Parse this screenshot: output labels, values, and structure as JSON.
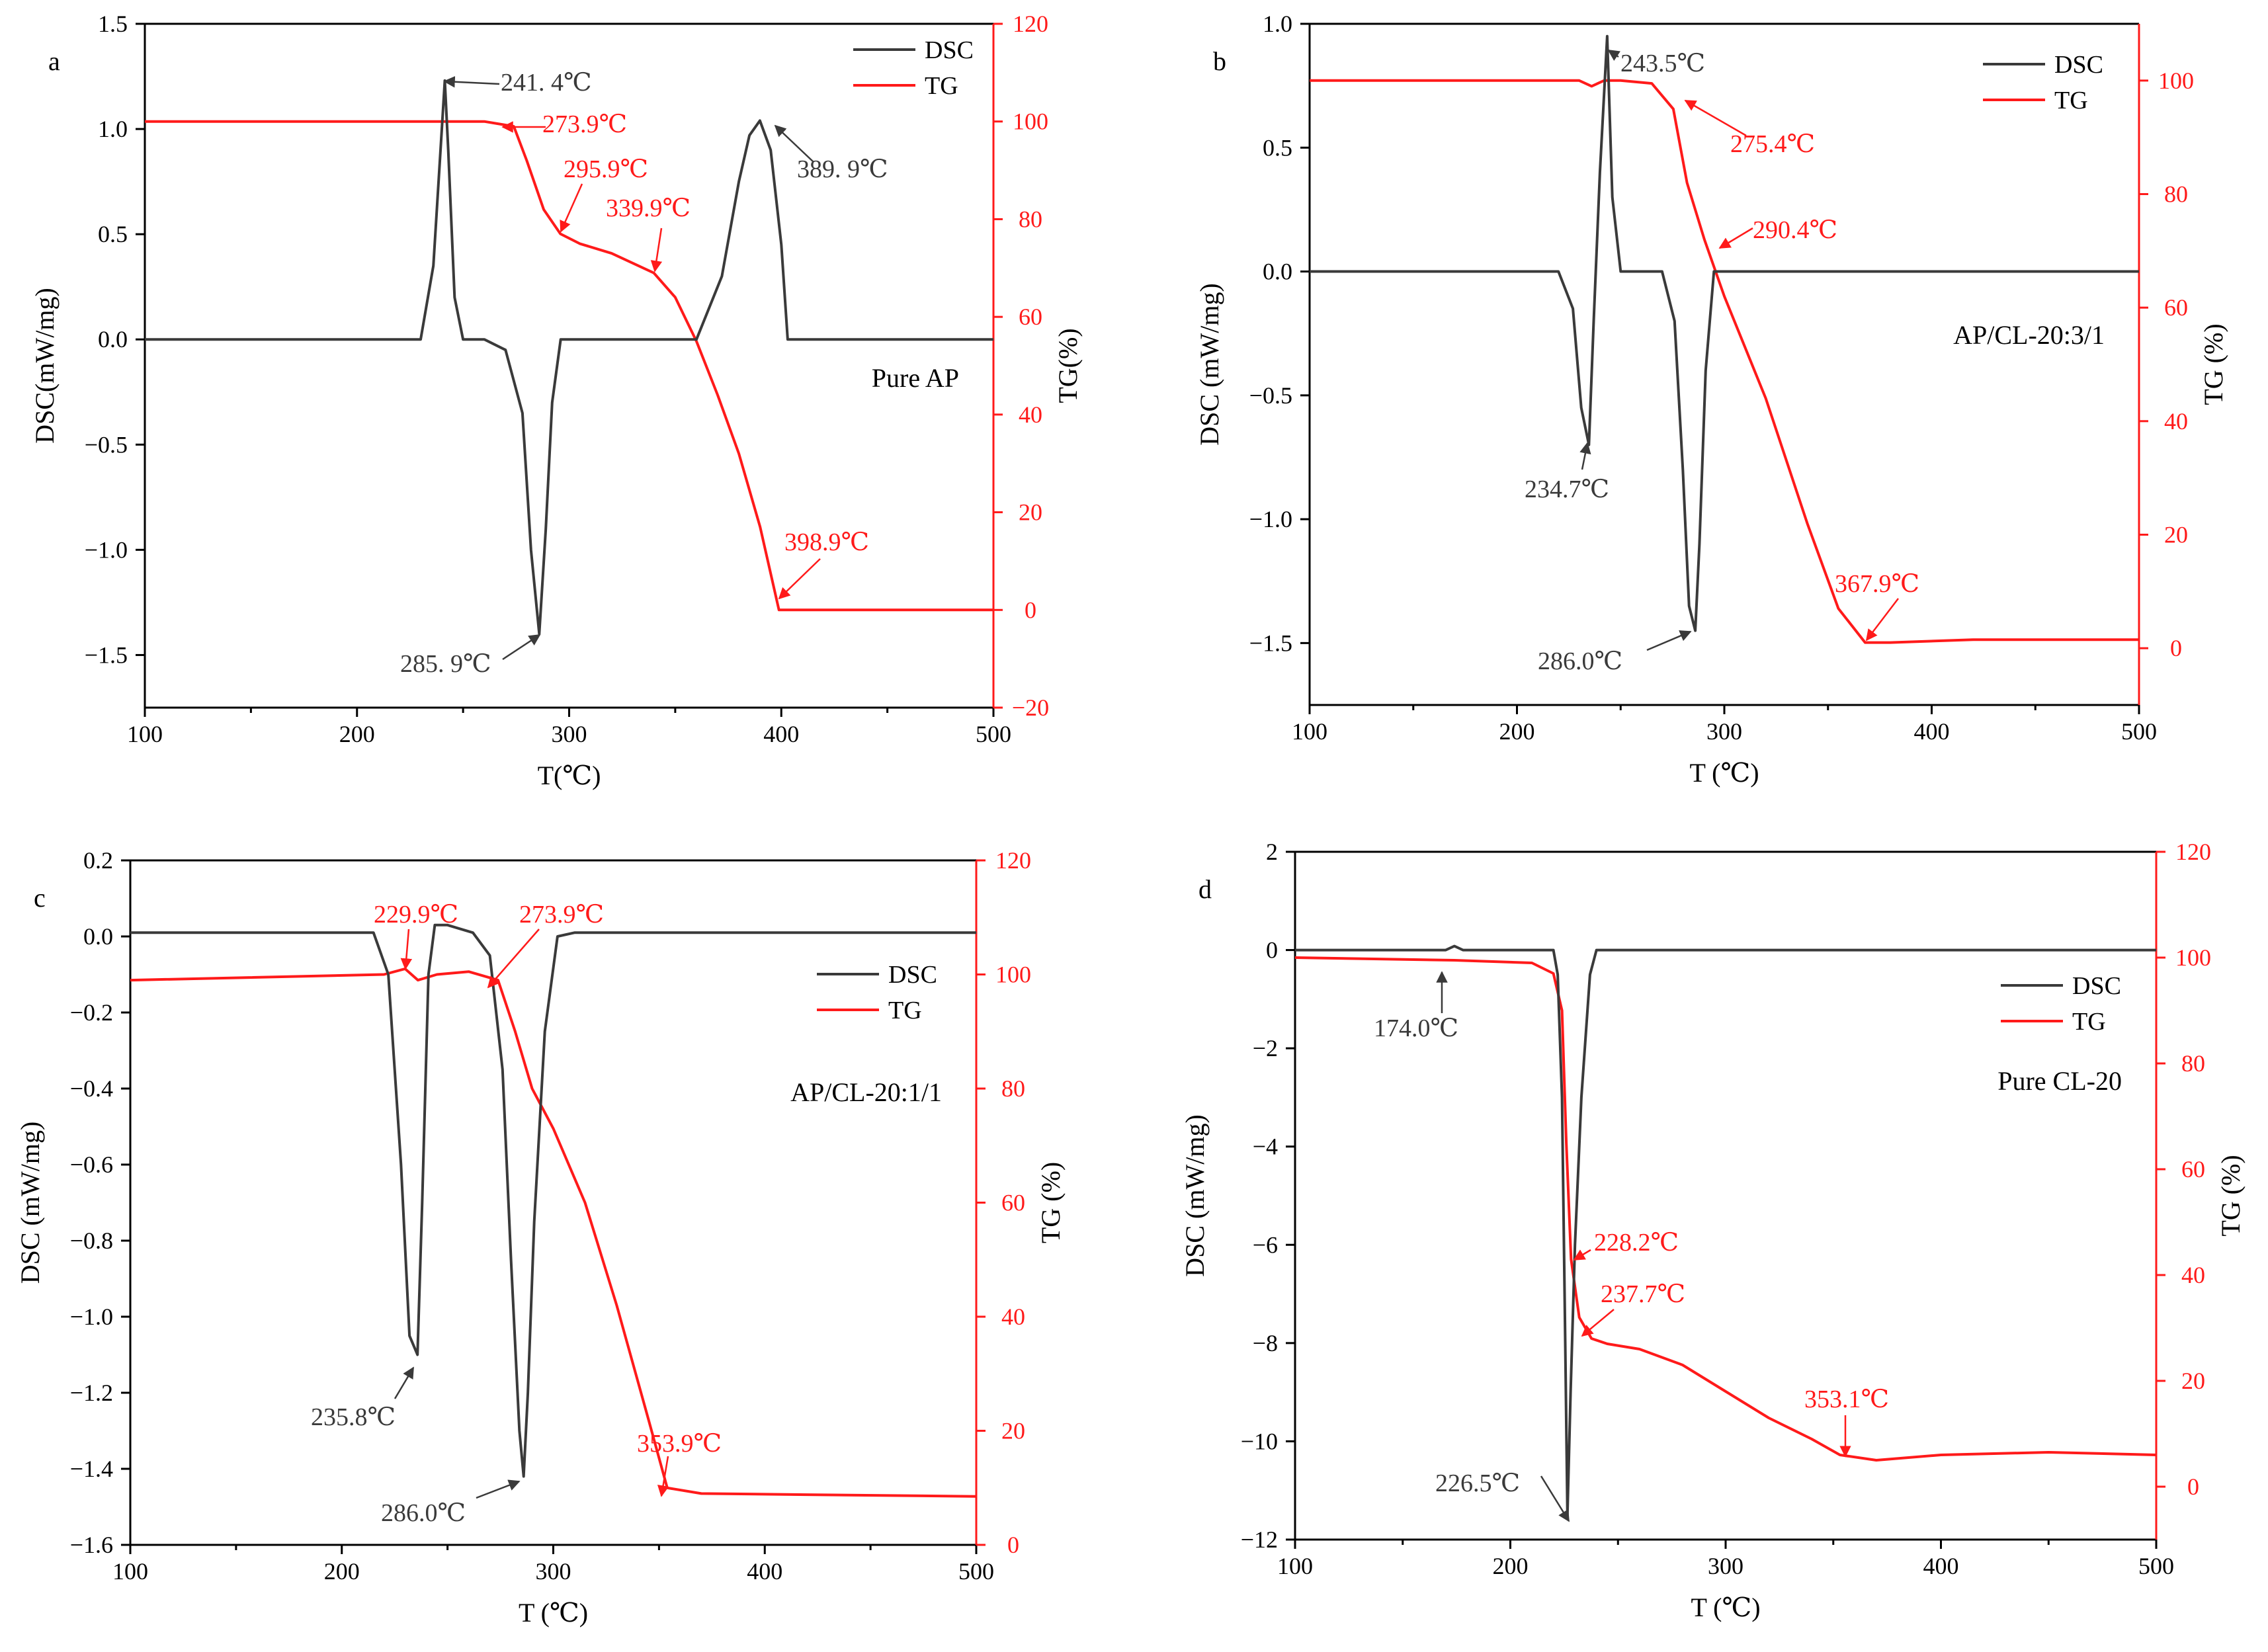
{
  "colors": {
    "dsc": "#3a3a3a",
    "tg": "#ff1a1a",
    "axis": "#000000"
  },
  "chart_data": [
    {
      "type": "line",
      "panel_label": "a",
      "sample_label": "Pure AP",
      "xlabel": "T(℃)",
      "ylabel_left": "DSC(mW/mg)",
      "ylabel_right": "TG(%)",
      "xlim": [
        100,
        500
      ],
      "ylim_left": [
        -1.75,
        1.5
      ],
      "ylim_right": [
        -20,
        120
      ],
      "xticks": [
        100,
        200,
        300,
        400,
        500
      ],
      "xtick_labels": [
        "100",
        "200",
        "300",
        "400",
        "500"
      ],
      "yticks_left": [
        -1.5,
        -1.0,
        -0.5,
        0.0,
        0.5,
        1.0,
        1.5
      ],
      "ytick_labels_left": [
        "−1.5",
        "−1.0",
        "−0.5",
        "0.0",
        "0.5",
        "1.0",
        "1.5"
      ],
      "yticks_right": [
        -20,
        0,
        20,
        40,
        60,
        80,
        100,
        120
      ],
      "ytick_labels_right": [
        "−20",
        "0",
        "20",
        "40",
        "60",
        "80",
        "100",
        "120"
      ],
      "legend": {
        "position": "top-right",
        "entries": [
          "DSC",
          "TG"
        ]
      },
      "series": [
        {
          "name": "DSC",
          "axis": "left",
          "x": [
            100,
            230,
            236,
            240,
            241.4,
            243,
            246,
            250,
            260,
            270,
            278,
            282,
            285.9,
            289,
            292,
            296,
            300,
            330,
            360,
            372,
            380,
            385,
            389.9,
            395,
            400,
            403,
            420,
            500
          ],
          "y": [
            0,
            0,
            0.35,
            1.0,
            1.23,
            0.9,
            0.2,
            0,
            0,
            -0.05,
            -0.35,
            -1.0,
            -1.4,
            -0.9,
            -0.3,
            0,
            0,
            0,
            0,
            0.3,
            0.75,
            0.97,
            1.04,
            0.9,
            0.45,
            0,
            0,
            0
          ]
        },
        {
          "name": "TG",
          "axis": "right",
          "x": [
            100,
            260,
            273.9,
            280,
            288,
            295.9,
            305,
            320,
            339.9,
            350,
            360,
            370,
            380,
            390,
            398.9,
            410,
            450,
            500
          ],
          "y": [
            100,
            100,
            99,
            92,
            82,
            77,
            75,
            73,
            69,
            64,
            55,
            44,
            32,
            17,
            0,
            0,
            0,
            0
          ]
        }
      ],
      "annotations": [
        {
          "text": "241. 4℃",
          "series": "DSC"
        },
        {
          "text": "389. 9℃",
          "series": "DSC"
        },
        {
          "text": "285. 9℃",
          "series": "DSC"
        },
        {
          "text": "273.9℃",
          "series": "TG"
        },
        {
          "text": "295.9℃",
          "series": "TG"
        },
        {
          "text": "339.9℃",
          "series": "TG"
        },
        {
          "text": "398.9℃",
          "series": "TG"
        }
      ]
    },
    {
      "type": "line",
      "panel_label": "b",
      "sample_label": "AP/CL-20:3/1",
      "xlabel": "T (℃)",
      "ylabel_left": "DSC (mW/mg)",
      "ylabel_right": "TG (%)",
      "xlim": [
        100,
        500
      ],
      "ylim_left": [
        -1.75,
        1.0
      ],
      "ylim_right": [
        -10,
        110
      ],
      "xticks": [
        100,
        200,
        300,
        400,
        500
      ],
      "xtick_labels": [
        "100",
        "200",
        "300",
        "400",
        "500"
      ],
      "yticks_left": [
        -1.5,
        -1.0,
        -0.5,
        0.0,
        0.5,
        1.0
      ],
      "ytick_labels_left": [
        "−1.5",
        "−1.0",
        "−0.5",
        "0.0",
        "0.5",
        "1.0"
      ],
      "yticks_right": [
        0,
        20,
        40,
        60,
        80,
        100
      ],
      "ytick_labels_right": [
        "0",
        "20",
        "40",
        "60",
        "80",
        "100"
      ],
      "legend": {
        "position": "top-right",
        "entries": [
          "DSC",
          "TG"
        ]
      },
      "series": [
        {
          "name": "DSC",
          "axis": "left",
          "x": [
            100,
            220,
            227,
            231,
            234.7,
            237,
            240,
            243.5,
            246,
            250,
            260,
            270,
            276,
            280,
            283,
            286,
            288,
            291,
            295,
            300,
            340,
            380,
            420,
            460,
            500
          ],
          "y": [
            0,
            0,
            -0.15,
            -0.55,
            -0.7,
            -0.2,
            0.4,
            0.95,
            0.3,
            0,
            0,
            0,
            -0.2,
            -0.8,
            -1.35,
            -1.45,
            -1.1,
            -0.4,
            0,
            0,
            0,
            0,
            0,
            0,
            0
          ]
        },
        {
          "name": "TG",
          "axis": "right",
          "x": [
            100,
            230,
            236,
            242,
            250,
            265,
            275.4,
            282,
            290.4,
            300,
            320,
            340,
            355,
            367.9,
            380,
            420,
            500
          ],
          "y": [
            100,
            100,
            99,
            100,
            100,
            99.5,
            95,
            82,
            72,
            62,
            44,
            22,
            7,
            1,
            1,
            1.5,
            1.5
          ]
        }
      ],
      "annotations": [
        {
          "text": "243.5℃",
          "series": "DSC"
        },
        {
          "text": "234.7℃",
          "series": "DSC"
        },
        {
          "text": "286.0℃",
          "series": "DSC"
        },
        {
          "text": "275.4℃",
          "series": "TG"
        },
        {
          "text": "290.4℃",
          "series": "TG"
        },
        {
          "text": "367.9℃",
          "series": "TG"
        }
      ]
    },
    {
      "type": "line",
      "panel_label": "c",
      "sample_label": "AP/CL-20:1/1",
      "xlabel": "T (℃)",
      "ylabel_left": "DSC (mW/mg)",
      "ylabel_right": "TG (%)",
      "xlim": [
        100,
        500
      ],
      "ylim_left": [
        -1.6,
        0.2
      ],
      "ylim_right": [
        0,
        120
      ],
      "xticks": [
        100,
        200,
        300,
        400,
        500
      ],
      "xtick_labels": [
        "100",
        "200",
        "300",
        "400",
        "500"
      ],
      "yticks_left": [
        -1.6,
        -1.4,
        -1.2,
        -1.0,
        -0.8,
        -0.6,
        -0.4,
        -0.2,
        0.0,
        0.2
      ],
      "ytick_labels_left": [
        "−1.6",
        "−1.4",
        "−1.2",
        "−1.0",
        "−0.8",
        "−0.6",
        "−0.4",
        "−0.2",
        "0.0",
        "0.2"
      ],
      "yticks_right": [
        0,
        20,
        40,
        60,
        80,
        100,
        120
      ],
      "ytick_labels_right": [
        "0",
        "20",
        "40",
        "60",
        "80",
        "100",
        "120"
      ],
      "legend": {
        "position": "upper-right",
        "entries": [
          "DSC",
          "TG"
        ]
      },
      "series": [
        {
          "name": "DSC",
          "axis": "left",
          "x": [
            100,
            215,
            222,
            228,
            232,
            235.8,
            238,
            241,
            244,
            250,
            262,
            270,
            276,
            280,
            284,
            286,
            288,
            291,
            296,
            302,
            310,
            350,
            400,
            450,
            500
          ],
          "y": [
            0.01,
            0.01,
            -0.1,
            -0.6,
            -1.05,
            -1.1,
            -0.7,
            -0.1,
            0.03,
            0.03,
            0.01,
            -0.05,
            -0.35,
            -0.85,
            -1.3,
            -1.42,
            -1.2,
            -0.75,
            -0.25,
            0,
            0.01,
            0.01,
            0.01,
            0.01,
            0.01
          ]
        },
        {
          "name": "TG",
          "axis": "right",
          "x": [
            100,
            220,
            229.9,
            236,
            245,
            260,
            273.9,
            282,
            290,
            300,
            315,
            330,
            345,
            353.9,
            370,
            420,
            500
          ],
          "y": [
            99,
            100,
            101,
            99,
            100,
            100.5,
            99,
            90,
            80,
            73,
            60,
            42,
            22,
            10,
            9,
            8.8,
            8.5
          ]
        }
      ],
      "annotations": [
        {
          "text": "229.9℃",
          "series": "TG"
        },
        {
          "text": "273.9℃",
          "series": "TG"
        },
        {
          "text": "235.8℃",
          "series": "DSC"
        },
        {
          "text": "286.0℃",
          "series": "DSC"
        },
        {
          "text": "353.9℃",
          "series": "TG"
        }
      ]
    },
    {
      "type": "line",
      "panel_label": "d",
      "sample_label": "Pure CL-20",
      "xlabel": "T (℃)",
      "ylabel_left": "DSC (mW/mg)",
      "ylabel_right": "TG (%)",
      "xlim": [
        100,
        500
      ],
      "ylim_left": [
        -12,
        2
      ],
      "ylim_right": [
        -10,
        120
      ],
      "xticks": [
        100,
        200,
        300,
        400,
        500
      ],
      "xtick_labels": [
        "100",
        "200",
        "300",
        "400",
        "500"
      ],
      "yticks_left": [
        -12,
        -10,
        -8,
        -6,
        -4,
        -2,
        0,
        2
      ],
      "ytick_labels_left": [
        "−12",
        "−10",
        "−8",
        "−6",
        "−4",
        "−2",
        "0",
        "2"
      ],
      "yticks_right": [
        0,
        20,
        40,
        60,
        80,
        100,
        120
      ],
      "ytick_labels_right": [
        "0",
        "20",
        "40",
        "60",
        "80",
        "100",
        "120"
      ],
      "legend": {
        "position": "upper-right",
        "entries": [
          "DSC",
          "TG"
        ]
      },
      "series": [
        {
          "name": "DSC",
          "axis": "left",
          "x": [
            100,
            170,
            174,
            178,
            220,
            222,
            224,
            225.5,
            226.5,
            228,
            230,
            233,
            237,
            240,
            300,
            400,
            500
          ],
          "y": [
            0,
            0,
            0.08,
            0,
            0,
            -0.5,
            -3,
            -8,
            -11.5,
            -9,
            -6,
            -3,
            -0.5,
            0,
            0,
            0,
            0
          ]
        },
        {
          "name": "TG",
          "axis": "right",
          "x": [
            100,
            174,
            210,
            220,
            224,
            226,
            228.2,
            232,
            237.7,
            245,
            260,
            280,
            300,
            320,
            340,
            353.1,
            370,
            400,
            450,
            500
          ],
          "y": [
            100,
            99.5,
            99,
            97,
            90,
            65,
            43,
            32,
            28,
            27,
            26,
            23,
            18,
            13,
            9,
            6,
            5,
            6,
            6.5,
            6
          ]
        }
      ],
      "annotations": [
        {
          "text": "174.0℃",
          "series": "DSC"
        },
        {
          "text": "228.2℃",
          "series": "TG"
        },
        {
          "text": "237.7℃",
          "series": "TG"
        },
        {
          "text": "226.5℃",
          "series": "DSC"
        },
        {
          "text": "353.1℃",
          "series": "TG"
        }
      ]
    }
  ]
}
